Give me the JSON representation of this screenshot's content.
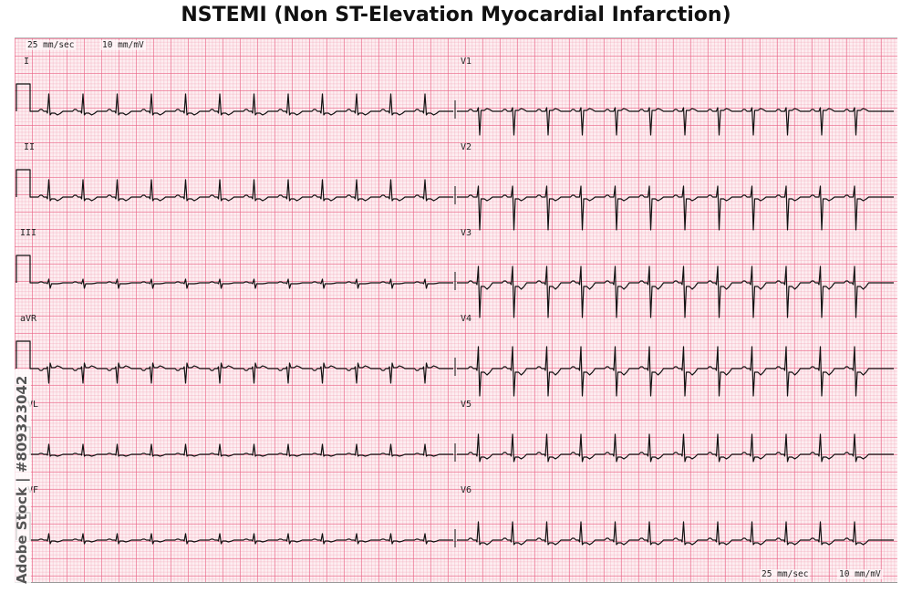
{
  "title": "NSTEMI (Non ST-Elevation Myocardial Infarction)",
  "calibration": {
    "paper_speed": "25 mm/sec",
    "gain": "10 mm/mV"
  },
  "leads": [
    {
      "name": "I"
    },
    {
      "name": "II"
    },
    {
      "name": "III"
    },
    {
      "name": "aVR"
    },
    {
      "name": "aVL",
      "visible_label": "VL"
    },
    {
      "name": "aVF",
      "visible_label": "VF"
    },
    {
      "name": "V1"
    },
    {
      "name": "V2"
    },
    {
      "name": "V3"
    },
    {
      "name": "V4"
    },
    {
      "name": "V5"
    },
    {
      "name": "V6"
    }
  ],
  "watermark": "Adobe Stock | #809323042",
  "colors": {
    "paper": "#fdeef1",
    "grid_major": "#ea6285",
    "grid_minor": "#f096ac",
    "trace": "#111111"
  }
}
